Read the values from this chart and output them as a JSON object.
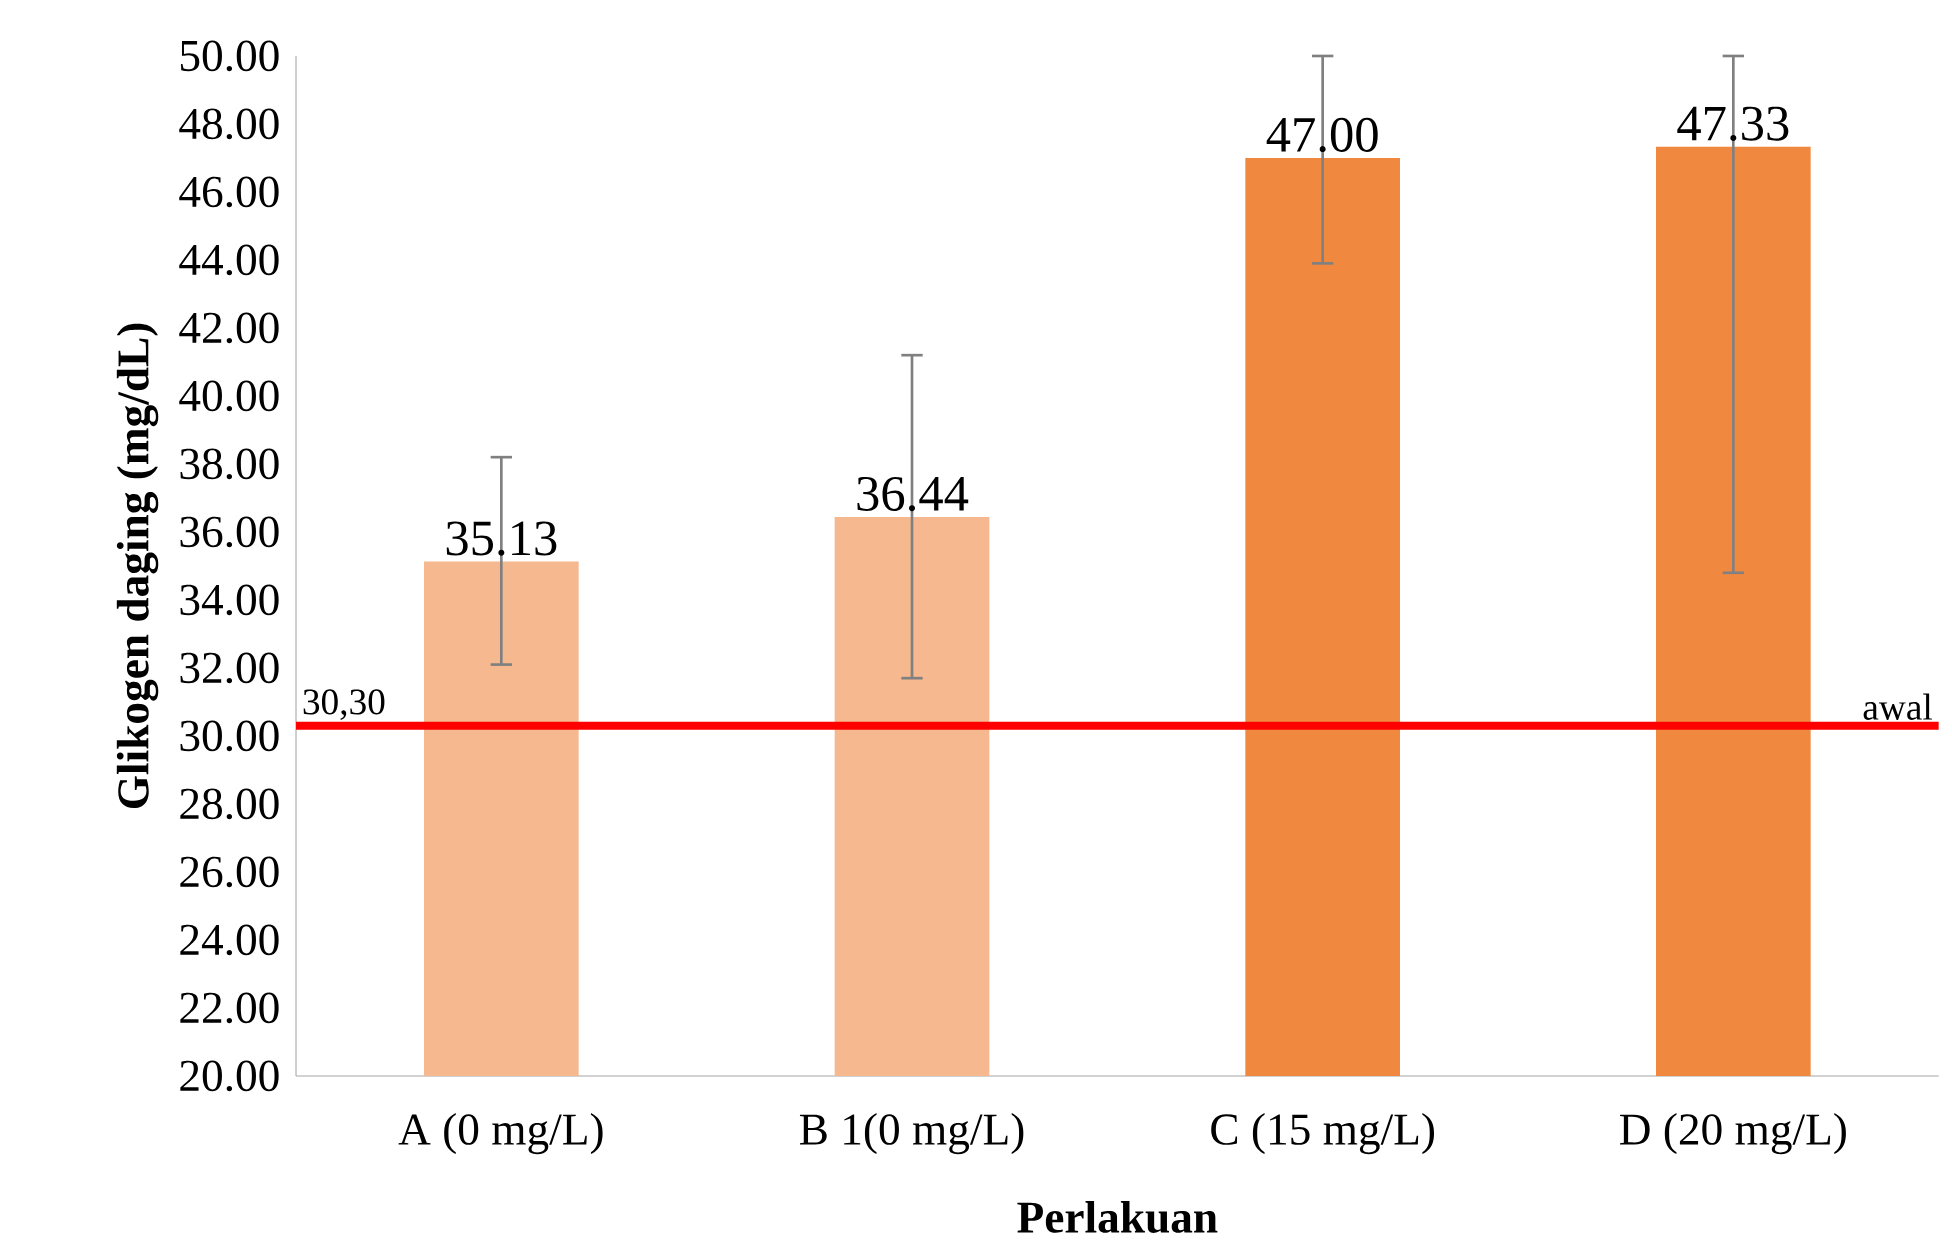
{
  "chart_data": {
    "type": "bar",
    "xlabel": "Perlakuan",
    "ylabel": "Glikogen daging (mg/dL)",
    "categories": [
      "A (0 mg/L)",
      "B 1(0 mg/L)",
      "C (15 mg/L)",
      "D (20 mg/L)"
    ],
    "values": [
      35.13,
      36.44,
      47.0,
      47.33
    ],
    "value_labels": [
      "35.13",
      "36.44",
      "47.00",
      "47.33"
    ],
    "colors": [
      "#f6b88e",
      "#f6b88e",
      "#f0883f",
      "#f0883f"
    ],
    "errors": [
      [
        32.1,
        38.2
      ],
      [
        31.7,
        41.2
      ],
      [
        43.9,
        50.0
      ],
      [
        34.8,
        50.0
      ]
    ],
    "ylim": [
      20,
      50
    ],
    "yticks": [
      {
        "value": 20,
        "label": "20.00"
      },
      {
        "value": 22,
        "label": "22.00"
      },
      {
        "value": 24,
        "label": "24.00"
      },
      {
        "value": 26,
        "label": "26.00"
      },
      {
        "value": 28,
        "label": "28.00"
      },
      {
        "value": 30,
        "label": "30.00"
      },
      {
        "value": 32,
        "label": "32.00"
      },
      {
        "value": 34,
        "label": "34.00"
      },
      {
        "value": 36,
        "label": "36.00"
      },
      {
        "value": 38,
        "label": "38.00"
      },
      {
        "value": 40,
        "label": "40.00"
      },
      {
        "value": 42,
        "label": "42.00"
      },
      {
        "value": 44,
        "label": "44.00"
      },
      {
        "value": 46,
        "label": "46.00"
      },
      {
        "value": 48,
        "label": "48.00"
      },
      {
        "value": 50,
        "label": "50.00"
      }
    ],
    "ref_lines": [
      {
        "axis": "y",
        "value": 30.3,
        "label": "awal",
        "color": "#ff0000"
      }
    ],
    "annotations": [
      {
        "text": "30,30",
        "y": 30.3
      }
    ],
    "grid": false
  }
}
